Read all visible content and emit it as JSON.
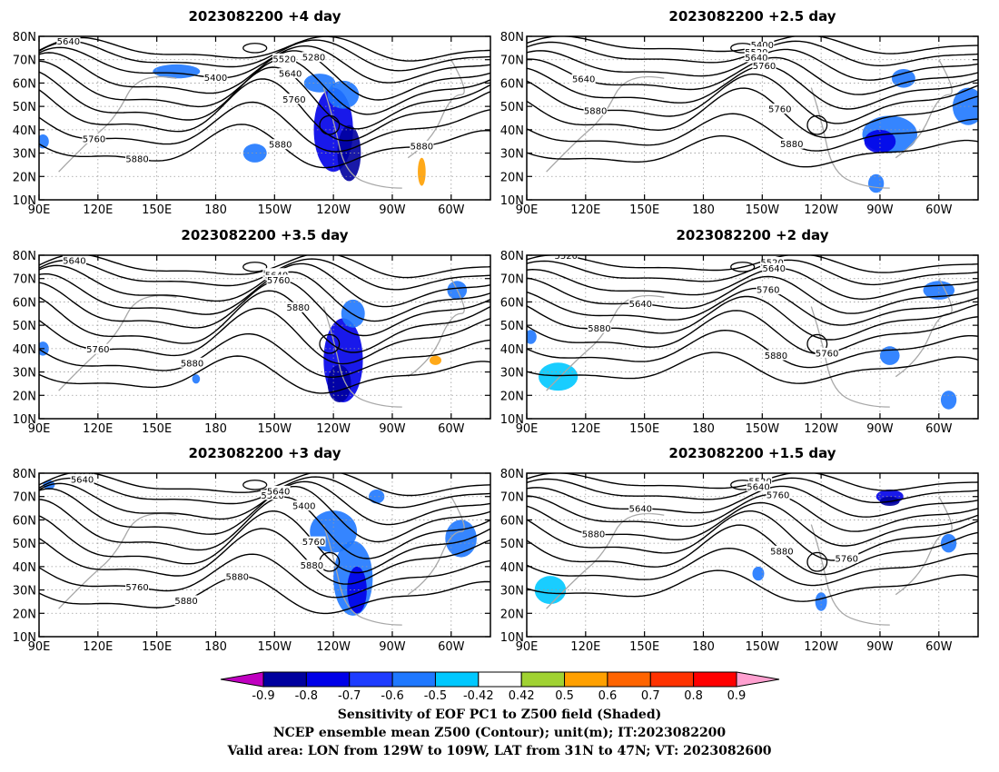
{
  "chart_data": {
    "type": "contour map panels",
    "panels": [
      {
        "title": "2023082200  +4 day",
        "contour_labels": [
          "5520",
          "5640",
          "5400",
          "5280",
          "5520",
          "5640",
          "5760",
          "5760",
          "5880",
          "5880",
          "5880"
        ]
      },
      {
        "title": "2023082200  +2.5 day",
        "contour_labels": [
          "5400",
          "5520",
          "5640",
          "5640",
          "5760",
          "5880",
          "5760",
          "5880"
        ]
      },
      {
        "title": "2023082200  +3.5 day",
        "contour_labels": [
          "5520",
          "5640",
          "5520",
          "5640",
          "5760",
          "5880",
          "5760",
          "5880"
        ]
      },
      {
        "title": "2023082200  +2 day",
        "contour_labels": [
          "5520",
          "5520",
          "5640",
          "5640",
          "5760",
          "5880",
          "5760",
          "5880"
        ]
      },
      {
        "title": "2023082200  +3 day",
        "contour_labels": [
          "5520",
          "5640",
          "5520",
          "5640",
          "5400",
          "5760",
          "5880",
          "5760",
          "5880",
          "5880"
        ]
      },
      {
        "title": "2023082200  +1.5 day",
        "contour_labels": [
          "5520",
          "5640",
          "5640",
          "5760",
          "5880",
          "5760",
          "5880"
        ]
      }
    ],
    "x_tick_labels": [
      "90E",
      "120E",
      "150E",
      "180",
      "150W",
      "120W",
      "90W",
      "60W"
    ],
    "y_tick_labels": [
      "80N",
      "70N",
      "60N",
      "50N",
      "40N",
      "30N",
      "20N",
      "10N"
    ],
    "lon_range": [
      90,
      320
    ],
    "lat_range": [
      10,
      80
    ],
    "grid": true,
    "colorbar": {
      "tick_labels": [
        "-0.9",
        "-0.8",
        "-0.7",
        "-0.6",
        "-0.5",
        "-0.42",
        "0.42",
        "0.5",
        "0.6",
        "0.7",
        "0.8",
        "0.9"
      ],
      "colors": [
        "#00009e",
        "#0000e8",
        "#1e3cff",
        "#1f78ff",
        "#00c8ff",
        "#ffffff",
        "#a0d232",
        "#ffa000",
        "#ff6400",
        "#ff3200",
        "#ff0000"
      ],
      "low_color": "#c000c0",
      "high_color": "#ffa0d0"
    },
    "footer_lines": [
      "Sensitivity of EOF PC1 to Z500 field (Shaded)",
      "NCEP ensemble mean Z500 (Contour); unit(m); IT:2023082200",
      "Valid area: LON from 129W to 109W, LAT from 31N to 47N; VT: 2023082600"
    ]
  }
}
